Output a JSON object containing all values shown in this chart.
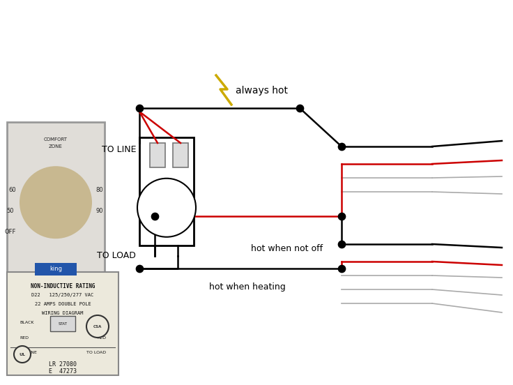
{
  "bg_color": "#ffffff",
  "black": "#000000",
  "red": "#cc0000",
  "gray": "#aaaaaa",
  "yellow": "#ccaa00",
  "dot_color": "#000000",
  "lw_main": 1.8,
  "lw_thin": 1.2,
  "dot_size": 55,
  "label_to_line": "TO LINE",
  "label_to_load": "TO LOAD",
  "label_always_hot": "always hot",
  "label_hot_when_not_off": "hot when not off",
  "label_hot_when_heating": "hot when heating"
}
